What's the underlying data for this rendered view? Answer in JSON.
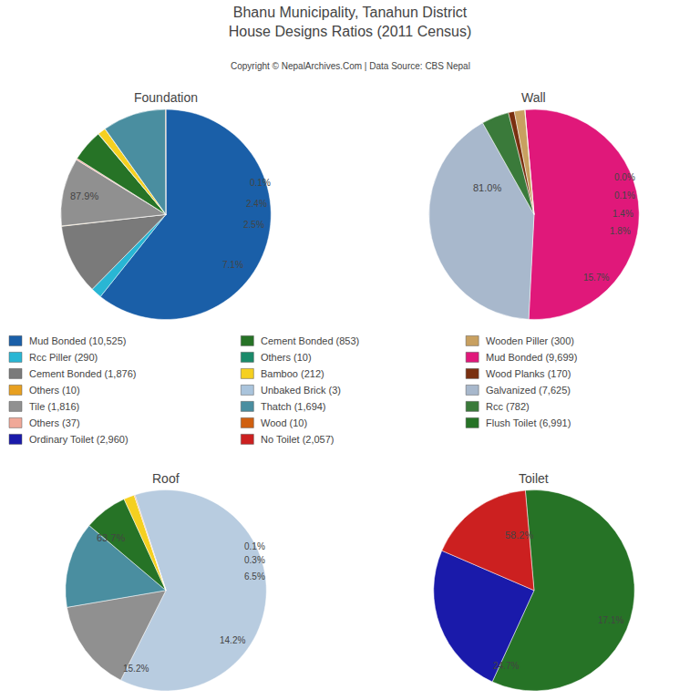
{
  "title": "Bhanu Municipality, Tanahun District\nHouse Designs Ratios (2011 Census)",
  "subtitle": "Copyright © NepalArchives.Com | Data Source: CBS Nepal",
  "chart_data": [
    {
      "type": "pie",
      "title": "Foundation",
      "values": [
        10525,
        290,
        1876,
        10,
        1816,
        37,
        853,
        10,
        212,
        3,
        1694,
        10
      ],
      "colors": [
        "#1a5fa8",
        "#29b6d4",
        "#7a7a7a",
        "#e8a020",
        "#909090",
        "#f0a898",
        "#267326",
        "#1a8a6a",
        "#f5d020",
        "#aac4dc",
        "#4a8ea0",
        "#d06010"
      ],
      "annotations": [
        "87.9%",
        "0.1%",
        "2.4%",
        "2.5%",
        "7.1%"
      ]
    },
    {
      "type": "pie",
      "title": "Wall",
      "values": [
        9699,
        7625,
        782,
        170,
        300,
        3
      ],
      "colors": [
        "#e0187a",
        "#a8b8cc",
        "#3a7a3a",
        "#7a3010",
        "#c8a060",
        "#f5d020"
      ],
      "annotations": [
        "81.0%",
        "0.0%",
        "0.1%",
        "1.4%",
        "1.8%",
        "15.7%"
      ]
    },
    {
      "type": "pie",
      "title": "Roof",
      "values": [
        7625,
        1816,
        1694,
        853,
        212,
        3,
        10
      ],
      "colors": [
        "#b8cce0",
        "#909090",
        "#4a8ea0",
        "#267326",
        "#f5d020",
        "#aac4dc",
        "#d06010"
      ],
      "annotations": [
        "63.7%",
        "14.2%",
        "15.2%",
        "6.5%",
        "0.3%",
        "0.1%"
      ]
    },
    {
      "type": "pie",
      "title": "Toilet",
      "values": [
        6991,
        2960,
        2057
      ],
      "colors": [
        "#267326",
        "#1a1aaa",
        "#cc2020"
      ],
      "annotations": [
        "58.2%",
        "24.7%",
        "17.1%"
      ]
    }
  ],
  "legend_items": [
    {
      "label": "Mud Bonded (10,525)",
      "color": "#1a5fa8"
    },
    {
      "label": "Rcc Piller (290)",
      "color": "#29b6d4"
    },
    {
      "label": "Cement Bonded (1,876)",
      "color": "#7a7a7a"
    },
    {
      "label": "Others (10)",
      "color": "#e8a020"
    },
    {
      "label": "Tile (1,816)",
      "color": "#909090"
    },
    {
      "label": "Others (37)",
      "color": "#f0a898"
    },
    {
      "label": "Ordinary Toilet (2,960)",
      "color": "#1a1aaa"
    },
    {
      "label": "Cement Bonded (853)",
      "color": "#267326"
    },
    {
      "label": "Others (10)",
      "color": "#1a8a6a"
    },
    {
      "label": "Bamboo (212)",
      "color": "#f5d020"
    },
    {
      "label": "Unbaked Brick (3)",
      "color": "#aac4dc"
    },
    {
      "label": "Thatch (1,694)",
      "color": "#4a8ea0"
    },
    {
      "label": "Wood (10)",
      "color": "#d06010"
    },
    {
      "label": "No Toilet (2,057)",
      "color": "#cc2020"
    },
    {
      "label": "Wooden Piller (300)",
      "color": "#c8a060"
    },
    {
      "label": "Mud Bonded (9,699)",
      "color": "#e0187a"
    },
    {
      "label": "Wood Planks (170)",
      "color": "#7a3010"
    },
    {
      "label": "Galvanized (7,625)",
      "color": "#a8b8cc"
    },
    {
      "label": "Rcc (782)",
      "color": "#3a7a3a"
    },
    {
      "label": "Flush Toilet (6,991)",
      "color": "#267326"
    }
  ]
}
